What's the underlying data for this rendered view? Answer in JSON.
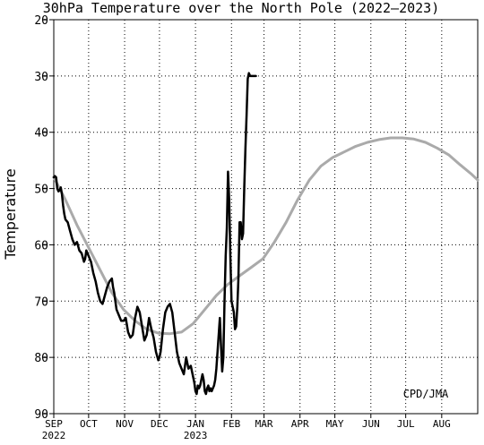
{
  "chart_data": {
    "type": "line",
    "title": "30hPa Temperature over the North Pole (2022–2023)",
    "ylabel": "Temperature",
    "xlabel": "",
    "ylim": [
      -90,
      -20
    ],
    "yticks": [
      -90,
      -80,
      -70,
      -60,
      -50,
      -40,
      -30,
      -20
    ],
    "ytick_labels": [
      "90",
      "80",
      "70",
      "60",
      "50",
      "40",
      "30",
      "20"
    ],
    "x_range_days": [
      0,
      365
    ],
    "month_ticks": [
      {
        "day": 0,
        "label": "SEP",
        "year": "2022"
      },
      {
        "day": 30,
        "label": "OCT"
      },
      {
        "day": 61,
        "label": "NOV"
      },
      {
        "day": 91,
        "label": "DEC"
      },
      {
        "day": 122,
        "label": "JAN",
        "year": "2023"
      },
      {
        "day": 153,
        "label": "FEB"
      },
      {
        "day": 181,
        "label": "MAR"
      },
      {
        "day": 212,
        "label": "APR"
      },
      {
        "day": 242,
        "label": "MAY"
      },
      {
        "day": 273,
        "label": "JUN"
      },
      {
        "day": 303,
        "label": "JUL"
      },
      {
        "day": 334,
        "label": "AUG"
      }
    ],
    "grid": true,
    "annotation": "CPD/JMA",
    "series": [
      {
        "color": "#aaaaaa",
        "x": [
          0,
          10,
          20,
          30,
          40,
          50,
          60,
          70,
          80,
          90,
          100,
          110,
          120,
          130,
          140,
          150,
          160,
          170,
          180,
          190,
          200,
          210,
          220,
          230,
          240,
          250,
          260,
          270,
          280,
          290,
          300,
          310,
          320,
          330,
          340,
          350,
          360,
          365
        ],
        "y": [
          -48,
          -52,
          -56.5,
          -60.5,
          -64.5,
          -68.5,
          -71.5,
          -73.5,
          -75,
          -75.7,
          -75.8,
          -75.5,
          -74,
          -71.5,
          -69,
          -67,
          -65.5,
          -64,
          -62.5,
          -59.5,
          -56,
          -52,
          -48.5,
          -46,
          -44.5,
          -43.5,
          -42.5,
          -41.8,
          -41.3,
          -41,
          -41,
          -41.2,
          -41.8,
          -42.8,
          -44,
          -45.8,
          -47.5,
          -48.5
        ]
      },
      {
        "color": "#000000",
        "x": [
          0,
          1,
          2,
          3,
          4,
          5,
          6,
          7,
          8,
          9,
          10,
          12,
          14,
          16,
          18,
          20,
          22,
          24,
          26,
          27,
          28,
          30,
          32,
          34,
          36,
          38,
          40,
          42,
          44,
          46,
          48,
          50,
          51,
          52,
          53,
          54,
          56,
          58,
          60,
          62,
          64,
          66,
          68,
          70,
          72,
          74,
          76,
          78,
          80,
          82,
          84,
          86,
          88,
          90,
          91,
          92,
          93,
          94,
          96,
          98,
          100,
          102,
          104,
          106,
          108,
          110,
          112,
          114,
          116,
          118,
          120,
          121,
          122,
          123,
          124,
          125,
          126,
          127,
          128,
          129,
          130,
          131,
          132,
          133,
          134,
          135,
          136,
          137,
          138,
          139,
          140,
          141,
          142,
          143,
          144,
          145,
          146,
          147,
          148,
          149,
          150,
          151,
          152,
          153,
          154,
          155,
          156,
          157,
          158,
          159,
          160,
          161,
          162,
          163,
          164,
          165,
          166,
          167,
          168,
          169,
          170,
          171,
          172,
          173,
          174
        ],
        "y": [
          -48,
          -47.8,
          -48,
          -50,
          -50.5,
          -50.3,
          -49.8,
          -51,
          -53,
          -54.5,
          -55.5,
          -56,
          -57.5,
          -59,
          -60,
          -59.5,
          -61,
          -61.5,
          -63,
          -62.5,
          -61,
          -62,
          -63,
          -65,
          -66.5,
          -68.5,
          -70,
          -70.5,
          -69,
          -67.5,
          -66.5,
          -66,
          -67.5,
          -68.5,
          -70,
          -71.5,
          -72.5,
          -73.5,
          -73.5,
          -73,
          -75.5,
          -76.5,
          -76,
          -73,
          -71,
          -72,
          -74.5,
          -77,
          -76,
          -73,
          -75,
          -76.5,
          -79,
          -80.5,
          -80,
          -79,
          -77,
          -75,
          -72,
          -71,
          -70.5,
          -72,
          -75.5,
          -79,
          -81,
          -82,
          -83,
          -80,
          -82,
          -81.5,
          -83.5,
          -84.5,
          -86,
          -86.5,
          -85,
          -85.5,
          -85,
          -84,
          -83,
          -84,
          -86,
          -86.5,
          -85.5,
          -85,
          -86,
          -85.5,
          -86,
          -85.5,
          -85,
          -84,
          -82,
          -79,
          -76,
          -73,
          -78,
          -82.5,
          -80,
          -70,
          -62,
          -57,
          -47,
          -52,
          -62,
          -70,
          -71,
          -72,
          -75,
          -74.5,
          -71,
          -66,
          -56,
          -56,
          -59,
          -58,
          -50,
          -43,
          -37,
          -30.5,
          -29.5,
          -30,
          -30,
          -30,
          -30,
          -30,
          -30
        ]
      }
    ]
  }
}
